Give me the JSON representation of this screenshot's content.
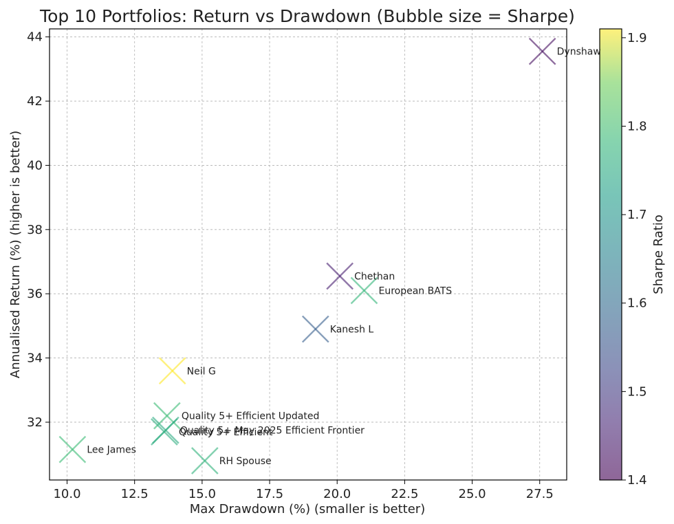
{
  "chart_data": {
    "type": "scatter",
    "title": "Top 10 Portfolios: Return vs Drawdown (Bubble size = Sharpe)",
    "xlabel": "Max Drawdown (%) (smaller is better)",
    "ylabel": "Annualised Return (%) (higher is better)",
    "xlim": [
      9.35,
      28.5
    ],
    "ylim": [
      30.2,
      44.25
    ],
    "xticks": [
      "10.0",
      "12.5",
      "15.0",
      "17.5",
      "20.0",
      "22.5",
      "25.0",
      "27.5"
    ],
    "yticks": [
      "32",
      "34",
      "36",
      "38",
      "40",
      "42",
      "44"
    ],
    "grid": true,
    "marker": "x",
    "colorbar": {
      "label": "Sharpe Ratio",
      "min": 1.4,
      "max": 1.91,
      "ticks": [
        "1.4",
        "1.5",
        "1.6",
        "1.7",
        "1.8",
        "1.9"
      ],
      "colormap": "viridis",
      "alpha": 0.6
    },
    "points": [
      {
        "label": "Dynshaw",
        "x": 27.6,
        "y": 43.55,
        "sharpe": 1.42
      },
      {
        "label": "Chethan",
        "x": 20.1,
        "y": 36.55,
        "sharpe": 1.45
      },
      {
        "label": "European BATS",
        "x": 21.0,
        "y": 36.1,
        "sharpe": 1.78
      },
      {
        "label": "Kanesh L",
        "x": 19.2,
        "y": 34.9,
        "sharpe": 1.57
      },
      {
        "label": "Neil G",
        "x": 13.9,
        "y": 33.6,
        "sharpe": 1.91
      },
      {
        "label": "Quality 5+ Efficient Updated",
        "x": 13.7,
        "y": 32.2,
        "sharpe": 1.79
      },
      {
        "label": "Quality 5+ May 2025 Efficient Frontier",
        "x": 13.65,
        "y": 31.75,
        "sharpe": 1.75
      },
      {
        "label": "Quality 5+ Efficient",
        "x": 13.6,
        "y": 31.7,
        "sharpe": 1.76
      },
      {
        "label": "Lee James",
        "x": 10.2,
        "y": 31.15,
        "sharpe": 1.79
      },
      {
        "label": "RH Spouse",
        "x": 15.1,
        "y": 30.8,
        "sharpe": 1.77
      }
    ]
  }
}
